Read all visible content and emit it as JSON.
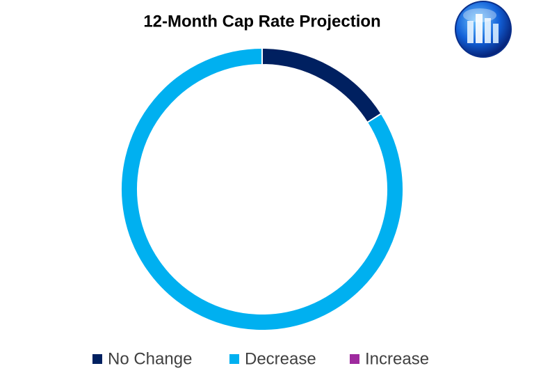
{
  "chart_data": {
    "type": "donut",
    "title": "12-Month Cap Rate Projection",
    "categories": [
      "No Change",
      "Decrease",
      "Increase"
    ],
    "values": [
      16,
      84,
      0
    ],
    "colors": [
      "#002060",
      "#00b0f0",
      "#9e2a9e"
    ],
    "legend": "bottom"
  }
}
